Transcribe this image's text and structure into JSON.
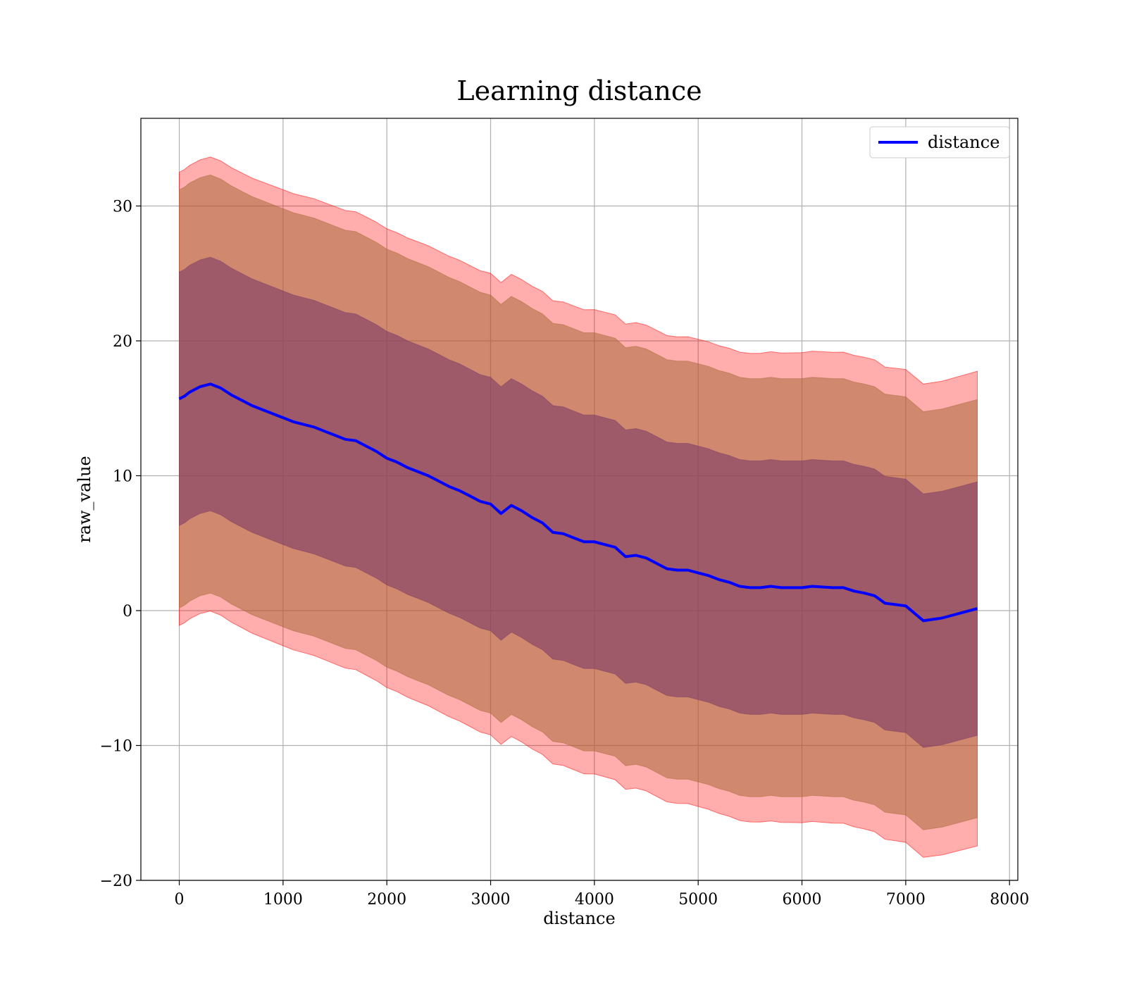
{
  "chart_data": {
    "type": "area",
    "title": "Learning distance",
    "xlabel": "distance",
    "ylabel": "raw_value",
    "xlim": [
      -370,
      8080
    ],
    "ylim": [
      -20,
      36.5
    ],
    "xticks": [
      0,
      1000,
      2000,
      3000,
      4000,
      5000,
      6000,
      7000,
      8000
    ],
    "yticks": [
      -20,
      -10,
      0,
      10,
      20,
      30
    ],
    "grid": true,
    "legend": {
      "position": "top-right",
      "entries": [
        "distance"
      ]
    },
    "colors": {
      "line": "#0000ff",
      "band_outer": "#ff0000",
      "band_middle": "#aa6b3b",
      "band_inner": "#7f3d66",
      "grid": "#b0b0b0"
    },
    "bands": [
      {
        "role": "outer",
        "upper_offset": 16.8,
        "lower_offset": 16.8,
        "offset_growth": 0.8
      },
      {
        "role": "middle",
        "upper_offset": 15.5,
        "lower_offset": 15.5,
        "offset_growth": 0
      },
      {
        "role": "inner",
        "upper_offset": 9.4,
        "lower_offset": 9.4,
        "offset_growth": 0
      }
    ],
    "series": [
      {
        "name": "distance",
        "x": [
          0,
          50,
          100,
          200,
          300,
          400,
          500,
          600,
          700,
          800,
          900,
          1000,
          1100,
          1200,
          1300,
          1400,
          1500,
          1600,
          1700,
          1800,
          1900,
          2000,
          2100,
          2200,
          2300,
          2400,
          2500,
          2600,
          2700,
          2800,
          2900,
          3000,
          3100,
          3200,
          3300,
          3400,
          3500,
          3600,
          3700,
          3800,
          3900,
          4000,
          4100,
          4200,
          4300,
          4400,
          4500,
          4600,
          4700,
          4800,
          4900,
          5000,
          5100,
          5200,
          5300,
          5400,
          5500,
          5600,
          5700,
          5800,
          5900,
          6000,
          6100,
          6200,
          6300,
          6400,
          6500,
          6600,
          6700,
          6800,
          6900,
          7000,
          7170,
          7350,
          7690
        ],
        "y": [
          15.7,
          15.9,
          16.2,
          16.6,
          16.8,
          16.5,
          16.0,
          15.6,
          15.2,
          14.9,
          14.6,
          14.3,
          14.0,
          13.8,
          13.6,
          13.3,
          13.0,
          12.7,
          12.6,
          12.2,
          11.8,
          11.3,
          11.0,
          10.6,
          10.3,
          10.0,
          9.6,
          9.2,
          8.9,
          8.5,
          8.1,
          7.9,
          7.2,
          7.8,
          7.4,
          6.9,
          6.5,
          5.8,
          5.7,
          5.4,
          5.1,
          5.1,
          4.9,
          4.7,
          4.0,
          4.1,
          3.9,
          3.5,
          3.1,
          3.0,
          3.0,
          2.8,
          2.6,
          2.3,
          2.1,
          1.8,
          1.7,
          1.7,
          1.8,
          1.7,
          1.7,
          1.7,
          1.8,
          1.75,
          1.7,
          1.7,
          1.45,
          1.3,
          1.1,
          0.55,
          0.45,
          0.35,
          -0.75,
          -0.55,
          0.15
        ]
      }
    ]
  }
}
